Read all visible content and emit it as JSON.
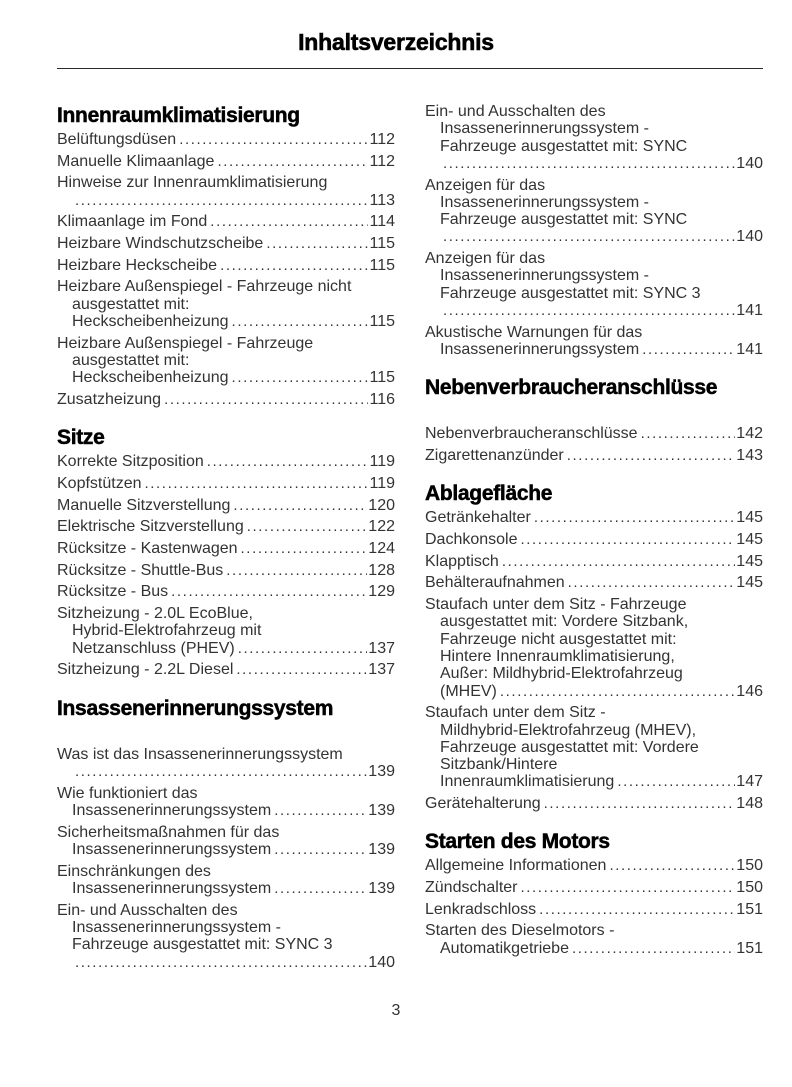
{
  "header": {
    "title": "Inhaltsverzeichnis"
  },
  "footer": {
    "page_number": "3"
  },
  "toc": {
    "columns": [
      {
        "sections": [
          {
            "heading": "Innenraumklimatisierung",
            "extra_space_below_heading": false,
            "entries": [
              {
                "lines": [
                  "Belüftungsdüsen"
                ],
                "page": "112"
              },
              {
                "lines": [
                  "Manuelle Klimaanlage"
                ],
                "page": "112"
              },
              {
                "lines": [
                  "Hinweise zur Innenraumklimatisierung",
                  ""
                ],
                "page": "113"
              },
              {
                "lines": [
                  "Klimaanlage im Fond"
                ],
                "page": "114"
              },
              {
                "lines": [
                  "Heizbare Windschutzscheibe"
                ],
                "page": "115"
              },
              {
                "lines": [
                  "Heizbare Heckscheibe"
                ],
                "page": "115"
              },
              {
                "lines": [
                  "Heizbare Außenspiegel - Fahrzeuge nicht",
                  "ausgestattet mit:",
                  "Heckscheibenheizung"
                ],
                "page": "115"
              },
              {
                "lines": [
                  "Heizbare Außenspiegel - Fahrzeuge",
                  "ausgestattet mit:",
                  "Heckscheibenheizung"
                ],
                "page": "115"
              },
              {
                "lines": [
                  "Zusatzheizung"
                ],
                "page": "116"
              }
            ]
          },
          {
            "heading": "Sitze",
            "extra_space_below_heading": false,
            "entries": [
              {
                "lines": [
                  "Korrekte Sitzposition"
                ],
                "page": "119"
              },
              {
                "lines": [
                  "Kopfstützen"
                ],
                "page": "119"
              },
              {
                "lines": [
                  "Manuelle Sitzverstellung"
                ],
                "page": "120"
              },
              {
                "lines": [
                  "Elektrische Sitzverstellung"
                ],
                "page": "122"
              },
              {
                "lines": [
                  "Rücksitze - Kastenwagen"
                ],
                "page": "124"
              },
              {
                "lines": [
                  "Rücksitze - Shuttle-Bus"
                ],
                "page": "128"
              },
              {
                "lines": [
                  "Rücksitze - Bus"
                ],
                "page": "129"
              },
              {
                "lines": [
                  "Sitzheizung - 2.0L EcoBlue,",
                  "Hybrid-Elektrofahrzeug mit",
                  "Netzanschluss (PHEV)"
                ],
                "page": "137"
              },
              {
                "lines": [
                  "Sitzheizung - 2.2L Diesel"
                ],
                "page": "137"
              }
            ]
          },
          {
            "heading": "Insassenerinnerungssystem",
            "extra_space_below_heading": true,
            "entries": [
              {
                "lines": [
                  "Was ist das Insassenerinnerungssystem",
                  ""
                ],
                "page": "139"
              },
              {
                "lines": [
                  "Wie funktioniert das",
                  "Insassenerinnerungssystem"
                ],
                "page": "139"
              },
              {
                "lines": [
                  "Sicherheitsmaßnahmen für das",
                  "Insassenerinnerungssystem"
                ],
                "page": "139"
              },
              {
                "lines": [
                  "Einschränkungen des",
                  "Insassenerinnerungssystem"
                ],
                "page": "139"
              },
              {
                "lines": [
                  "Ein- und Ausschalten des",
                  "Insassenerinnerungssystem -",
                  "Fahrzeuge ausgestattet mit: SYNC 3",
                  ""
                ],
                "page": "140"
              }
            ]
          }
        ]
      },
      {
        "sections": [
          {
            "heading": null,
            "extra_space_below_heading": false,
            "entries": [
              {
                "lines": [
                  "Ein- und Ausschalten des",
                  "Insassenerinnerungssystem -",
                  "Fahrzeuge ausgestattet mit: SYNC",
                  ""
                ],
                "page": "140"
              },
              {
                "lines": [
                  "Anzeigen für das",
                  "Insassenerinnerungssystem -",
                  "Fahrzeuge ausgestattet mit: SYNC",
                  ""
                ],
                "page": "140"
              },
              {
                "lines": [
                  "Anzeigen für das",
                  "Insassenerinnerungssystem -",
                  "Fahrzeuge ausgestattet mit: SYNC 3",
                  ""
                ],
                "page": "141"
              },
              {
                "lines": [
                  "Akustische Warnungen für das",
                  "Insassenerinnerungssystem"
                ],
                "page": "141"
              }
            ]
          },
          {
            "heading": "Nebenverbraucheranschlüsse",
            "extra_space_below_heading": true,
            "entries": [
              {
                "lines": [
                  "Nebenverbraucheranschlüsse"
                ],
                "page": "142"
              },
              {
                "lines": [
                  "Zigarettenanzünder"
                ],
                "page": "143"
              }
            ]
          },
          {
            "heading": "Ablagefläche",
            "extra_space_below_heading": false,
            "entries": [
              {
                "lines": [
                  "Getränkehalter"
                ],
                "page": "145"
              },
              {
                "lines": [
                  "Dachkonsole"
                ],
                "page": "145"
              },
              {
                "lines": [
                  "Klapptisch"
                ],
                "page": "145"
              },
              {
                "lines": [
                  "Behälteraufnahmen"
                ],
                "page": "145"
              },
              {
                "lines": [
                  "Staufach unter dem Sitz - Fahrzeuge",
                  "ausgestattet mit: Vordere Sitzbank,",
                  "Fahrzeuge nicht ausgestattet mit:",
                  "Hintere Innenraumklimatisierung,",
                  "Außer: Mildhybrid-Elektrofahrzeug",
                  "(MHEV)"
                ],
                "page": "146"
              },
              {
                "lines": [
                  "Staufach unter dem Sitz -",
                  "Mildhybrid-Elektrofahrzeug (MHEV),",
                  "Fahrzeuge ausgestattet mit: Vordere",
                  "Sitzbank/Hintere",
                  "Innenraumklimatisierung"
                ],
                "page": "147"
              },
              {
                "lines": [
                  "Gerätehalterung"
                ],
                "page": "148"
              }
            ]
          },
          {
            "heading": "Starten des Motors",
            "extra_space_below_heading": false,
            "entries": [
              {
                "lines": [
                  "Allgemeine Informationen"
                ],
                "page": "150"
              },
              {
                "lines": [
                  "Zündschalter"
                ],
                "page": "150"
              },
              {
                "lines": [
                  "Lenkradschloss"
                ],
                "page": "151"
              },
              {
                "lines": [
                  "Starten des Dieselmotors -",
                  "Automatikgetriebe"
                ],
                "page": "151"
              }
            ]
          }
        ]
      }
    ]
  }
}
